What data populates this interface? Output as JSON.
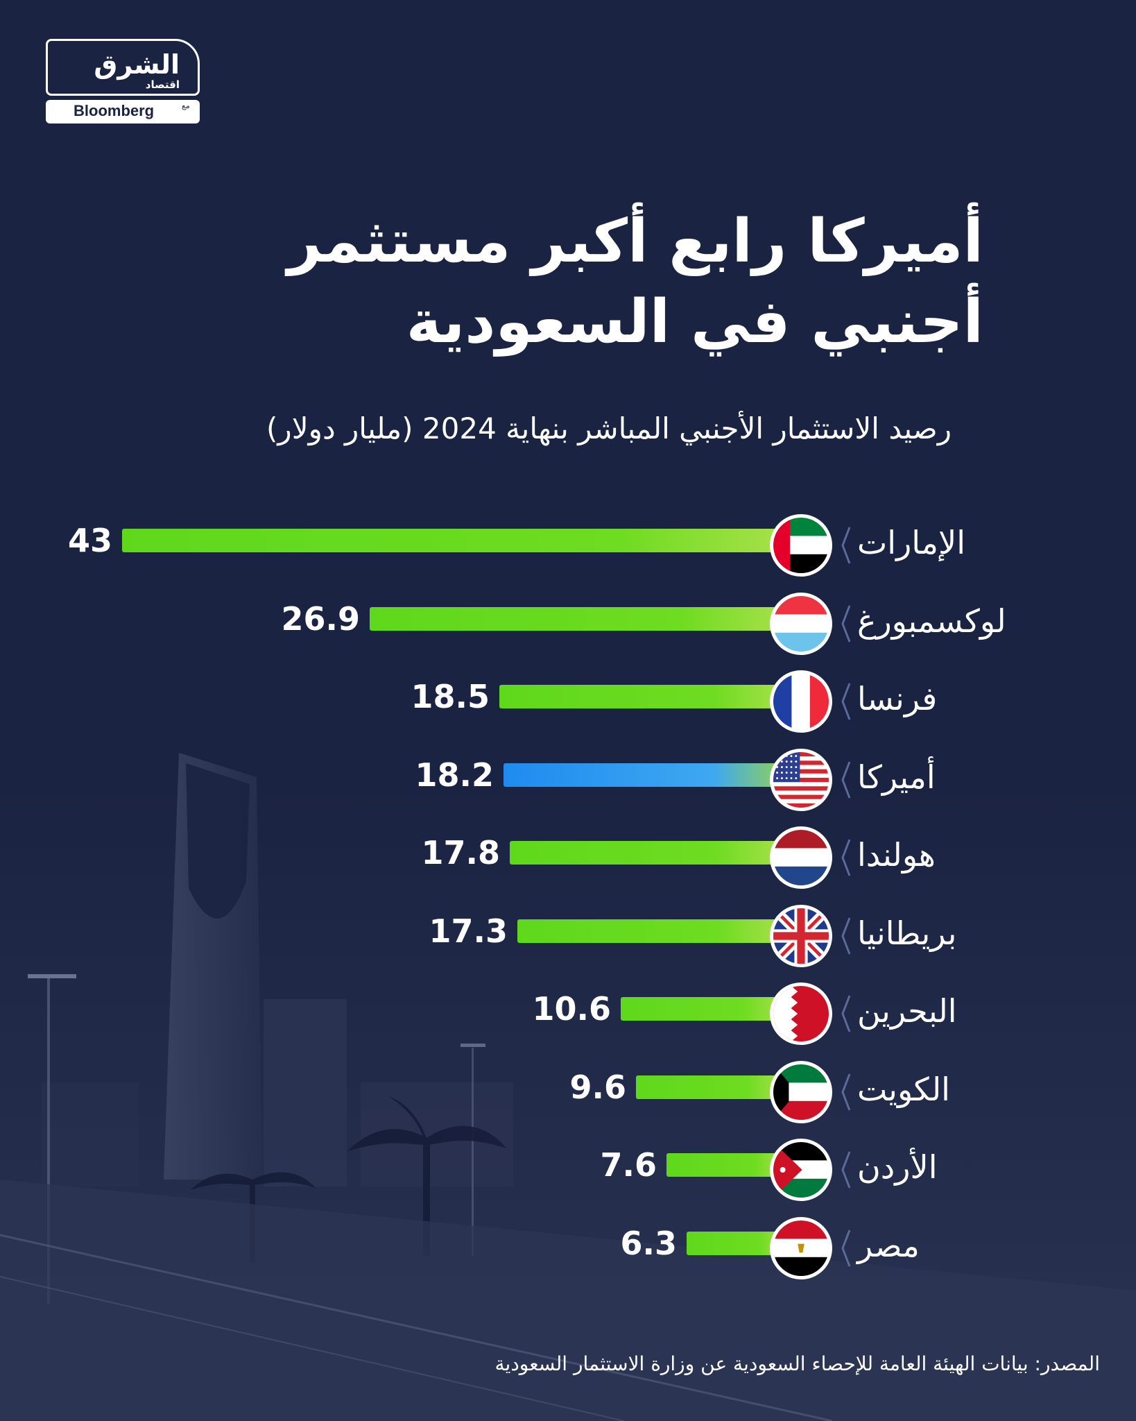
{
  "logo": {
    "brand_ar": "الشرق",
    "sub_ar": "اقتصاد",
    "with_ar": "مع",
    "partner": "Bloomberg"
  },
  "colors": {
    "background": "#1b2342",
    "bar_default": "#5fd81c",
    "bar_highlight": "#1f8bef",
    "text": "#ffffff"
  },
  "chart_data": {
    "type": "bar",
    "orientation": "horizontal",
    "title_lines": [
      "أميركا رابع أكبر مستثمر",
      "أجنبي في السعودية"
    ],
    "subtitle": "رصيد الاستثمار الأجنبي المباشر بنهاية 2024 (مليار دولار)",
    "categories": [
      "الإمارات",
      "لوكسمبورغ",
      "فرنسا",
      "أميركا",
      "هولندا",
      "بريطانيا",
      "البحرين",
      "الكويت",
      "الأردن",
      "مصر"
    ],
    "values": [
      43,
      26.9,
      18.5,
      18.2,
      17.8,
      17.3,
      10.6,
      9.6,
      7.6,
      6.3
    ],
    "value_labels": [
      "43",
      "26.9",
      "18.5",
      "18.2",
      "17.8",
      "17.3",
      "10.6",
      "9.6",
      "7.6",
      "6.3"
    ],
    "flags": [
      "uae-flag-icon",
      "luxembourg-flag-icon",
      "france-flag-icon",
      "usa-flag-icon",
      "netherlands-flag-icon",
      "uk-flag-icon",
      "bahrain-flag-icon",
      "kuwait-flag-icon",
      "jordan-flag-icon",
      "egypt-flag-icon"
    ],
    "highlight_index": 3,
    "xlim": [
      0,
      43
    ],
    "grid": false
  },
  "source": "المصدر: بيانات الهيئة العامة للإحصاء السعودية عن وزارة الاستثمار السعودية"
}
